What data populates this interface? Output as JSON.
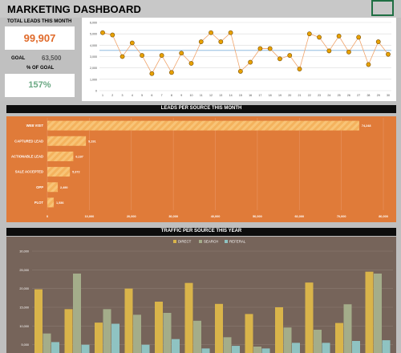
{
  "header": {
    "title": "MARKETING DASHBOARD"
  },
  "kpis": {
    "total_label": "TOTAL LEADS THIS MONTH",
    "total_value": "99,907",
    "goal_label": "GOAL",
    "goal_value": "63,500",
    "pct_label": "% OF GOAL",
    "pct_value": "157%"
  },
  "sections": {
    "leads_title": "LEADS PER SOURCE THIS MONTH",
    "traffic_title": "TRAFFIC PER SOURCE THIS YEAR"
  },
  "colors": {
    "accent_orange": "#e07b39",
    "kpi_orange": "#e06a2a",
    "kpi_green": "#6aa883",
    "bar_fill": "#f8c477",
    "traffic_bg": "#76645a",
    "direct": "#d9b44a",
    "search": "#a4ad8a",
    "referal": "#8fc3c2"
  },
  "chart_data": [
    {
      "type": "line",
      "x": [
        1,
        2,
        3,
        4,
        5,
        6,
        7,
        8,
        9,
        10,
        11,
        12,
        13,
        14,
        15,
        16,
        17,
        18,
        19,
        20,
        21,
        22,
        23,
        24,
        25,
        26,
        27,
        28,
        29,
        30
      ],
      "series": [
        {
          "values": [
            5100,
            4900,
            3000,
            4200,
            3100,
            1500,
            3100,
            1600,
            3300,
            2400,
            4300,
            5100,
            4300,
            5100,
            1700,
            2500,
            3700,
            3700,
            2800,
            3100,
            1900,
            5000,
            4700,
            3500,
            4800,
            3400,
            4700,
            2300,
            4300,
            3200
          ]
        }
      ],
      "ylim": [
        0,
        6000
      ],
      "yticks": [
        "0",
        "1,000",
        "2,000",
        "3,000",
        "4,000",
        "5,000",
        "6,000"
      ],
      "xticks": [
        "1",
        "2",
        "3",
        "4",
        "5",
        "6",
        "7",
        "8",
        "9",
        "10",
        "11",
        "12",
        "13",
        "14",
        "15",
        "16",
        "17",
        "18",
        "19",
        "20",
        "21",
        "22",
        "23",
        "24",
        "25",
        "26",
        "27",
        "28",
        "29",
        "30"
      ],
      "grid": true
    },
    {
      "type": "bar",
      "orientation": "horizontal",
      "title": "LEADS PER SOURCE THIS MONTH",
      "categories": [
        "WEB VISIT",
        "CAPTURED LEAD",
        "ACTIONABLE LEAD",
        "SALE ACCEPTED",
        "OPP",
        "PLOT"
      ],
      "values": [
        74248,
        9191,
        6187,
        5372,
        2490,
        1536
      ],
      "value_labels": [
        "74,248",
        "9,191",
        "6,187",
        "5,372",
        "2,490",
        "1,536"
      ],
      "xlim": [
        0,
        80000
      ],
      "xticks": [
        "0",
        "10,000",
        "20,000",
        "30,000",
        "40,000",
        "50,000",
        "60,000",
        "70,000",
        "80,000"
      ],
      "grid": true
    },
    {
      "type": "bar",
      "title": "TRAFFIC PER SOURCE THIS YEAR",
      "legend": [
        "DIRECT",
        "SEARCH",
        "REFERAL"
      ],
      "legend_position": "top",
      "ylim": [
        0,
        30000
      ],
      "yticks": [
        "30,000",
        "25,000",
        "20,000",
        "15,000",
        "10,000",
        "5,000"
      ],
      "series": [
        {
          "name": "DIRECT",
          "values": [
            19800,
            14500,
            10900,
            20000,
            16500,
            21500,
            15900,
            13200,
            15000,
            21600,
            10800,
            24500
          ]
        },
        {
          "name": "SEARCH",
          "values": [
            8000,
            24000,
            14500,
            13000,
            13500,
            11400,
            7000,
            4500,
            9600,
            9000,
            15800,
            24000
          ]
        },
        {
          "name": "REFERAL",
          "values": [
            5700,
            5000,
            10600,
            5000,
            6500,
            4000,
            4700,
            4000,
            5500,
            5500,
            6000,
            6200
          ]
        }
      ]
    }
  ]
}
